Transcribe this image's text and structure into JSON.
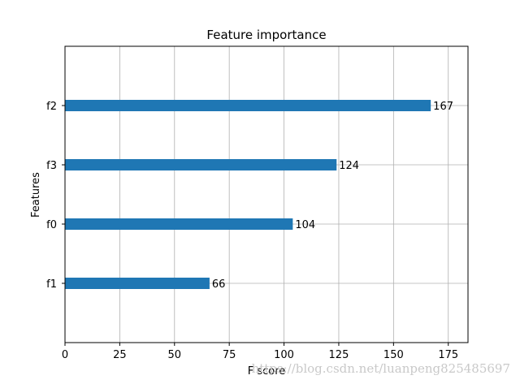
{
  "chart_data": {
    "type": "bar",
    "orientation": "horizontal",
    "title": "Feature importance",
    "xlabel": "F score",
    "ylabel": "Features",
    "categories": [
      "f1",
      "f0",
      "f3",
      "f2"
    ],
    "values": [
      66,
      104,
      124,
      167
    ],
    "value_labels": [
      "66",
      "104",
      "124",
      "167"
    ],
    "xlim": [
      0,
      184
    ],
    "xticks": [
      0,
      25,
      50,
      75,
      100,
      125,
      150,
      175
    ],
    "grid": true,
    "bar_color": "#1f77b4"
  },
  "watermark": "https://blog.csdn.net/luanpeng825485697"
}
